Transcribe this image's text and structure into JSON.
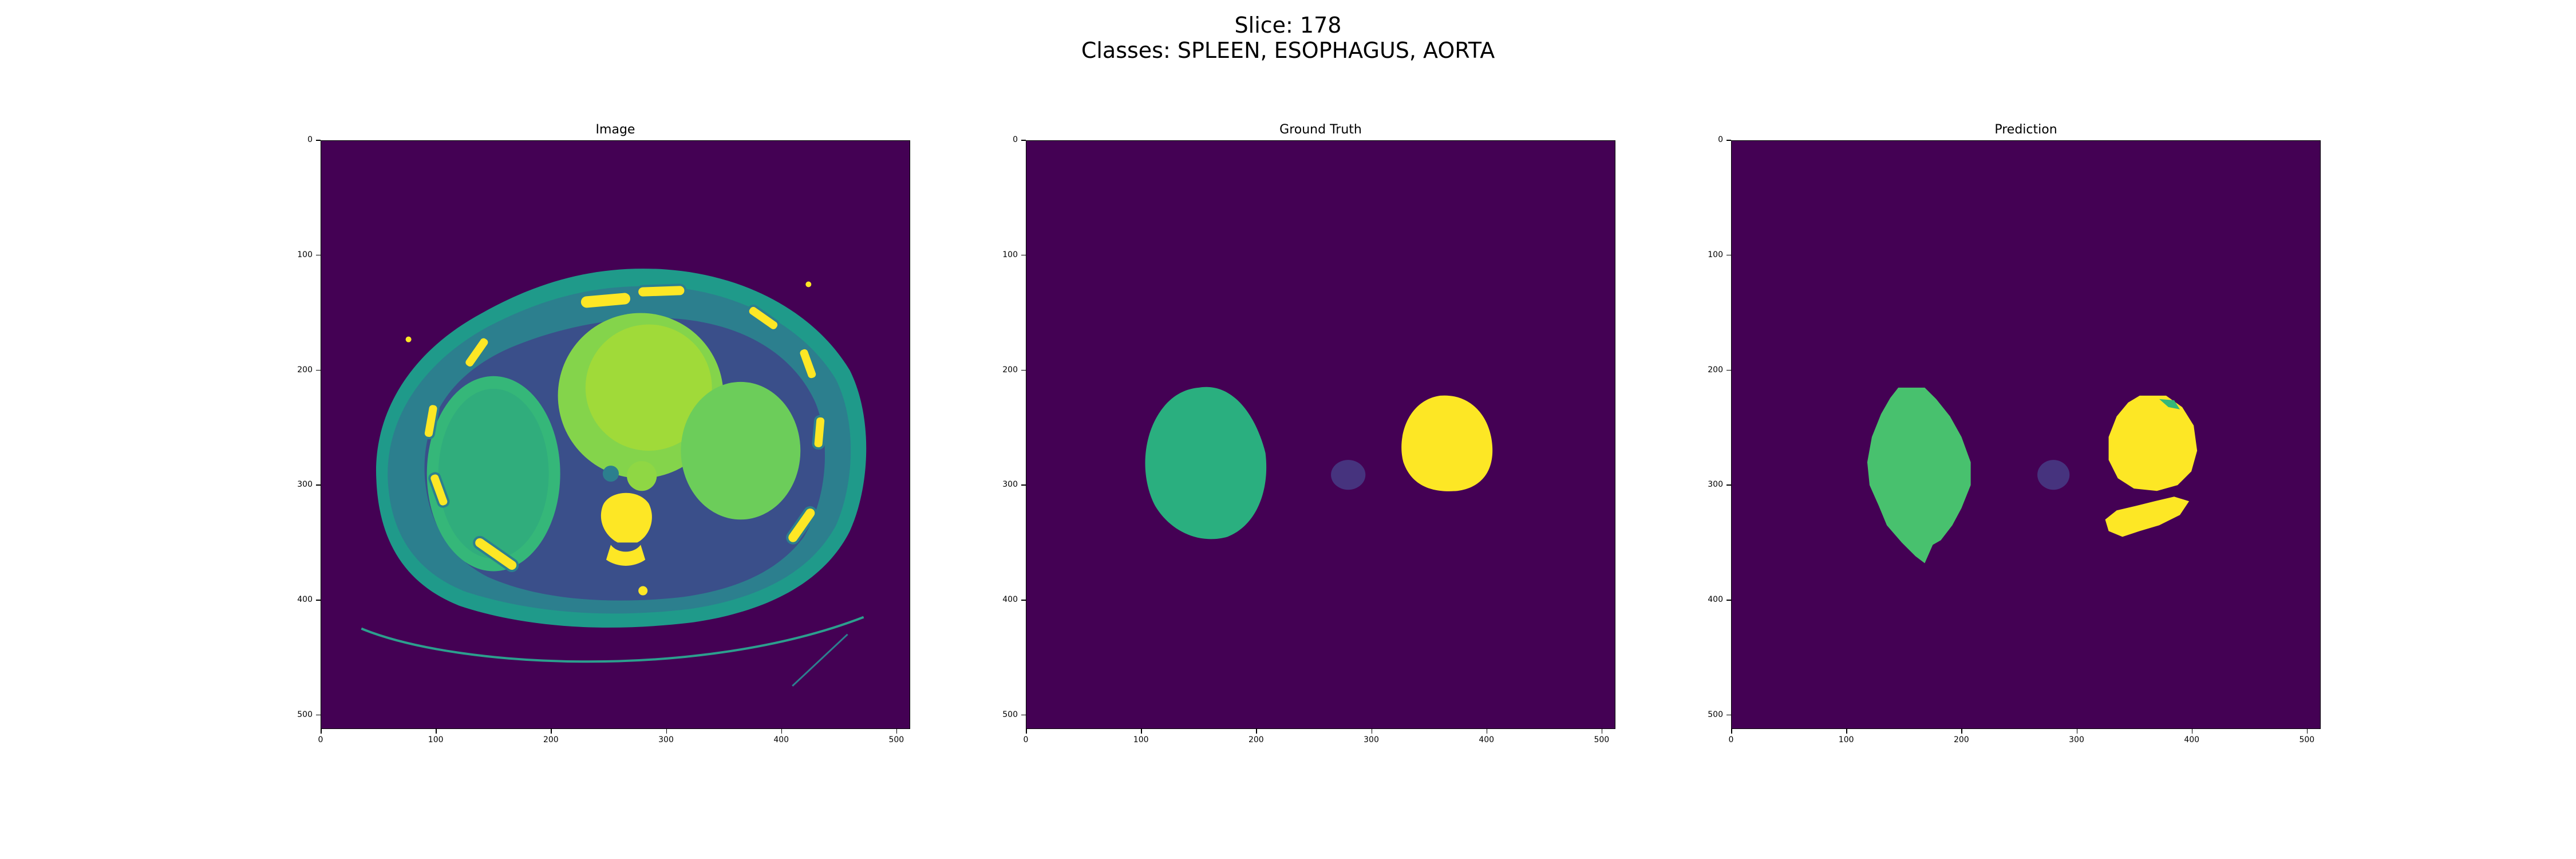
{
  "figure": {
    "suptitle_line1": "Slice: 178",
    "suptitle_line2": "Classes: SPLEEN, ESOPHAGUS, AORTA"
  },
  "panels": [
    {
      "title": "Image"
    },
    {
      "title": "Ground Truth"
    },
    {
      "title": "Prediction"
    }
  ],
  "axis": {
    "x_ticks": [
      "0",
      "100",
      "200",
      "300",
      "400",
      "500"
    ],
    "y_ticks": [
      "0",
      "100",
      "200",
      "300",
      "400",
      "500"
    ],
    "x_range": [
      0,
      512
    ],
    "y_range": [
      0,
      512
    ]
  },
  "colors": {
    "background": "#440154",
    "spleen": "#2aaf7f",
    "spleen_pred": "#48c16e",
    "esophagus": "#46337e",
    "aorta": "#fde725",
    "ct_tissue": "#2c7f8e",
    "ct_soft": "#35b779",
    "ct_bone": "#fde725"
  }
}
